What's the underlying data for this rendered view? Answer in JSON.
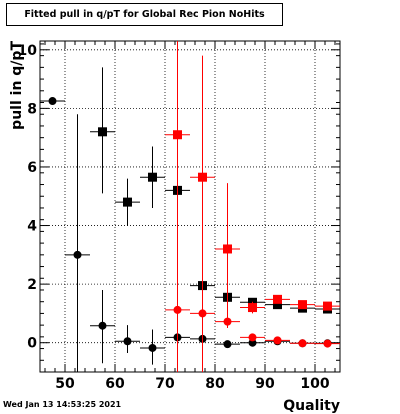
{
  "timestamp": "Wed Jan 13 14:53:25 2021",
  "chart_data": {
    "type": "scatter",
    "title": "Fitted pull in q/pT for Global Rec Pion NoHits",
    "xlabel": "Quality",
    "ylabel": "pull in q/pT",
    "xlim": [
      45,
      105
    ],
    "ylim": [
      -1,
      10.3
    ],
    "grid": true,
    "x_ticks": [
      50,
      60,
      70,
      80,
      90,
      100
    ],
    "y_ticks": [
      0,
      2,
      4,
      6,
      8,
      10
    ],
    "series": [
      {
        "color": "#000000",
        "marker": "circle",
        "points": [
          {
            "x": 47.5,
            "y": 8.25,
            "ylo": 8.25,
            "yhi": 8.25
          },
          {
            "x": 52.5,
            "y": 3.0,
            "ylo": -1.0,
            "yhi": 7.8
          },
          {
            "x": 57.5,
            "y": 0.58,
            "ylo": -0.7,
            "yhi": 1.8
          },
          {
            "x": 62.5,
            "y": 0.05,
            "ylo": -0.35,
            "yhi": 0.6
          },
          {
            "x": 67.5,
            "y": -0.18,
            "ylo": -0.75,
            "yhi": 0.45
          },
          {
            "x": 72.5,
            "y": 0.18,
            "ylo": 0.0,
            "yhi": 0.35
          },
          {
            "x": 77.5,
            "y": 0.13,
            "ylo": 0.0,
            "yhi": 0.3
          },
          {
            "x": 82.5,
            "y": -0.05,
            "ylo": -0.12,
            "yhi": 0.02
          },
          {
            "x": 87.5,
            "y": 0.0,
            "ylo": -0.05,
            "yhi": 0.05
          },
          {
            "x": 92.5,
            "y": 0.05,
            "ylo": 0.02,
            "yhi": 0.08
          },
          {
            "x": 97.5,
            "y": -0.02,
            "ylo": -0.04,
            "yhi": 0.0
          },
          {
            "x": 102.5,
            "y": -0.02,
            "ylo": -0.04,
            "yhi": 0.0
          }
        ]
      },
      {
        "color": "#000000",
        "marker": "square",
        "points": [
          {
            "x": 57.5,
            "y": 7.2,
            "ylo": 5.1,
            "yhi": 9.4
          },
          {
            "x": 62.5,
            "y": 4.8,
            "ylo": 4.0,
            "yhi": 5.6
          },
          {
            "x": 67.5,
            "y": 5.65,
            "ylo": 4.6,
            "yhi": 6.7
          },
          {
            "x": 72.5,
            "y": 5.2,
            "ylo": 5.2,
            "yhi": 5.2
          },
          {
            "x": 77.5,
            "y": 1.95,
            "ylo": 1.95,
            "yhi": 1.95
          },
          {
            "x": 82.5,
            "y": 1.55,
            "ylo": 1.4,
            "yhi": 1.7
          },
          {
            "x": 87.5,
            "y": 1.38,
            "ylo": 1.3,
            "yhi": 1.46
          },
          {
            "x": 92.5,
            "y": 1.3,
            "ylo": 1.25,
            "yhi": 1.35
          },
          {
            "x": 97.5,
            "y": 1.18,
            "ylo": 1.14,
            "yhi": 1.22
          },
          {
            "x": 102.5,
            "y": 1.15,
            "ylo": 1.12,
            "yhi": 1.18
          }
        ]
      },
      {
        "color": "#ff0000",
        "marker": "circle",
        "points": [
          {
            "x": 72.5,
            "y": 1.12,
            "ylo": 1.12,
            "yhi": 1.12
          },
          {
            "x": 77.5,
            "y": 1.0,
            "ylo": 0.5,
            "yhi": 1.5
          },
          {
            "x": 82.5,
            "y": 0.72,
            "ylo": 0.5,
            "yhi": 0.95
          },
          {
            "x": 87.5,
            "y": 0.18,
            "ylo": 0.08,
            "yhi": 0.28
          },
          {
            "x": 92.5,
            "y": 0.08,
            "ylo": 0.03,
            "yhi": 0.13
          },
          {
            "x": 97.5,
            "y": -0.02,
            "ylo": -0.05,
            "yhi": 0.01
          },
          {
            "x": 102.5,
            "y": -0.03,
            "ylo": -0.05,
            "yhi": -0.01
          }
        ]
      },
      {
        "color": "#ff0000",
        "marker": "square",
        "points": [
          {
            "x": 72.5,
            "y": 7.1,
            "ylo": -1.0,
            "yhi": 10.3
          },
          {
            "x": 77.5,
            "y": 5.65,
            "ylo": -1.0,
            "yhi": 9.8
          },
          {
            "x": 82.5,
            "y": 3.2,
            "ylo": 0.9,
            "yhi": 5.45
          },
          {
            "x": 87.5,
            "y": 1.2,
            "ylo": 1.0,
            "yhi": 1.4
          },
          {
            "x": 92.5,
            "y": 1.48,
            "ylo": 1.38,
            "yhi": 1.58
          },
          {
            "x": 97.5,
            "y": 1.3,
            "ylo": 1.22,
            "yhi": 1.38
          },
          {
            "x": 102.5,
            "y": 1.25,
            "ylo": 1.18,
            "yhi": 1.32
          }
        ]
      }
    ]
  }
}
